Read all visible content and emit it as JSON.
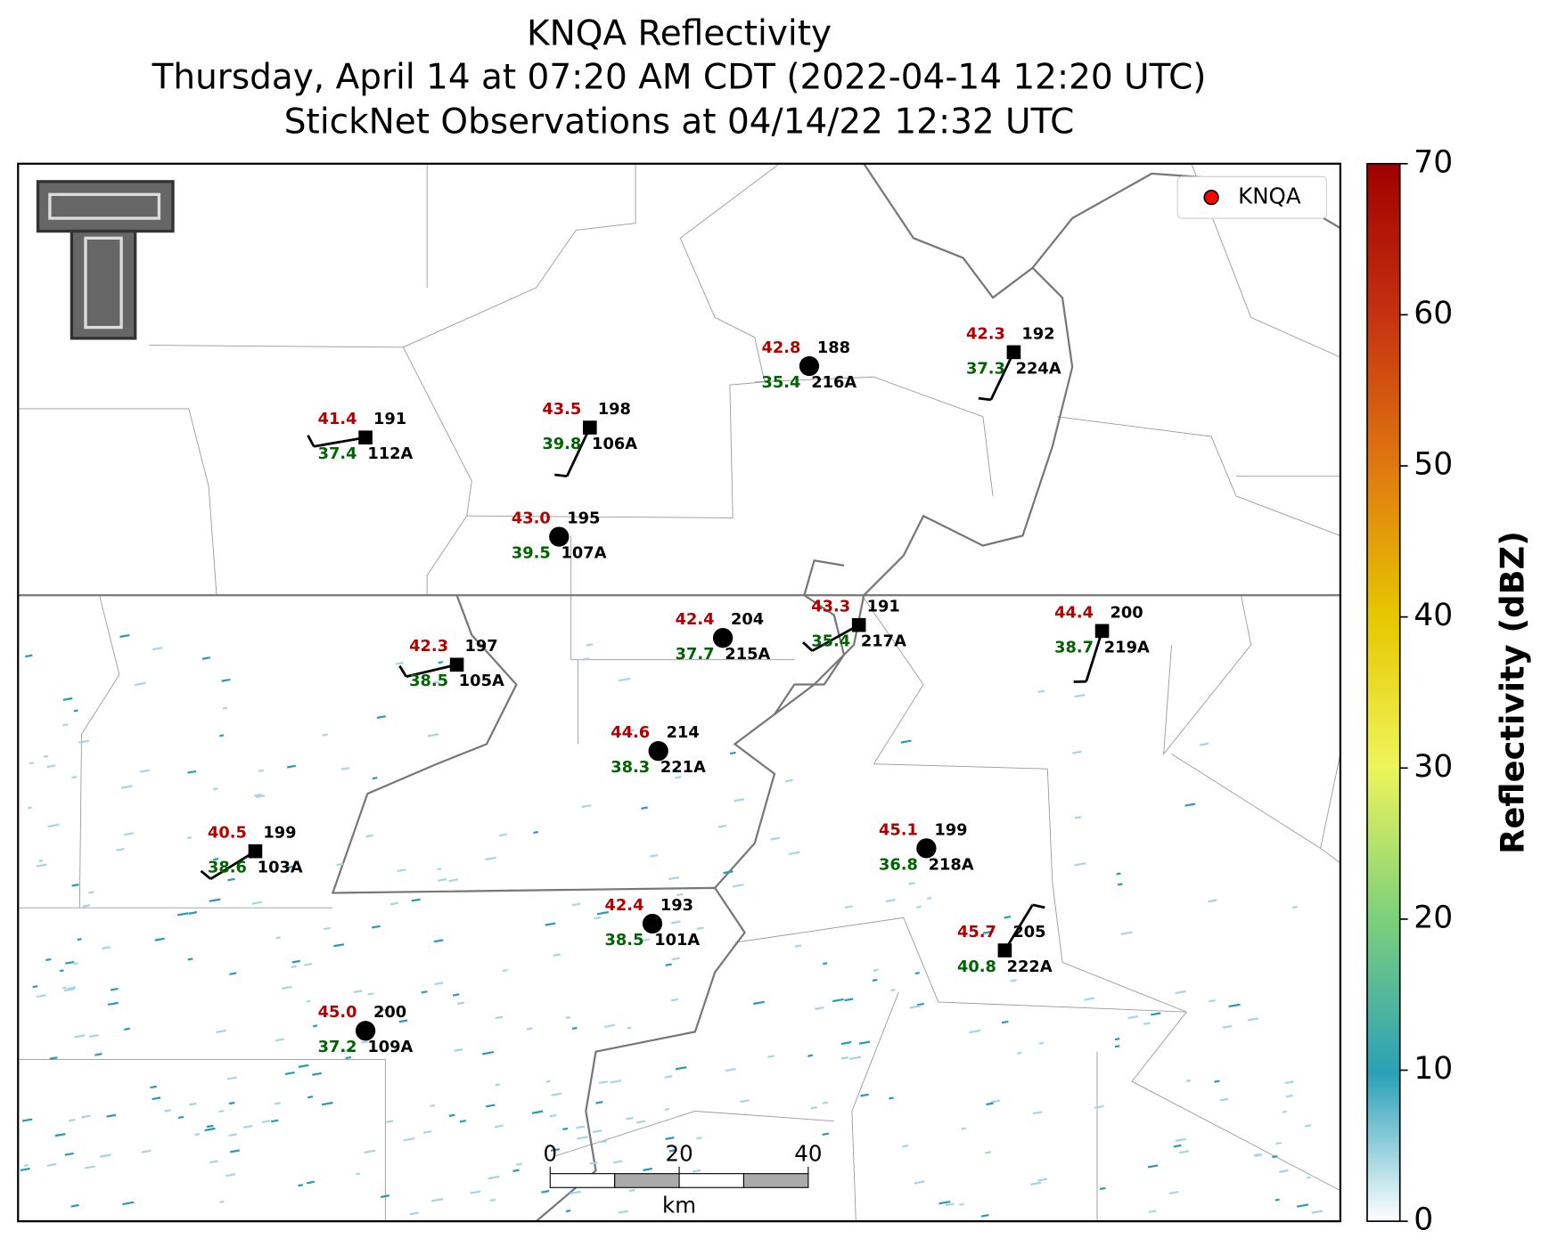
{
  "title": {
    "lines": [
      "KNQA Reflectivity",
      "Thursday, April 14 at 07:20 AM CDT (2022-04-14 12:20 UTC)",
      "StickNet Observations at 04/14/22 12:32 UTC"
    ]
  },
  "legend": {
    "label": "KNQA",
    "color": "#ff0000"
  },
  "colorbar": {
    "label": "Reflectivity (dBZ)",
    "lim": [
      0,
      70
    ],
    "ticks": [
      0,
      10,
      20,
      30,
      40,
      50,
      60,
      70
    ]
  },
  "scale_bar": {
    "ticks": [
      0,
      20,
      40
    ],
    "unit": "km"
  },
  "stations": [
    {
      "id": "112A",
      "temperature": "41.4",
      "dewpoint": "37.4",
      "value": "191"
    },
    {
      "id": "106A",
      "temperature": "43.5",
      "dewpoint": "39.8",
      "value": "198"
    },
    {
      "id": "107A",
      "temperature": "43.0",
      "dewpoint": "39.5",
      "value": "195"
    },
    {
      "id": "216A",
      "temperature": "42.8",
      "dewpoint": "35.4",
      "value": "188"
    },
    {
      "id": "224A",
      "temperature": "42.3",
      "dewpoint": "37.3",
      "value": "192"
    },
    {
      "id": "215A",
      "temperature": "42.4",
      "dewpoint": "37.7",
      "value": "204"
    },
    {
      "id": "217A",
      "temperature": "43.3",
      "dewpoint": "35.4",
      "value": "191"
    },
    {
      "id": "219A",
      "temperature": "44.4",
      "dewpoint": "38.7",
      "value": "200"
    },
    {
      "id": "105A",
      "temperature": "42.3",
      "dewpoint": "38.5",
      "value": "197"
    },
    {
      "id": "221A",
      "temperature": "44.6",
      "dewpoint": "38.3",
      "value": "214"
    },
    {
      "id": "103A",
      "temperature": "40.5",
      "dewpoint": "38.6",
      "value": "199"
    },
    {
      "id": "218A",
      "temperature": "45.1",
      "dewpoint": "36.8",
      "value": "199"
    },
    {
      "id": "101A",
      "temperature": "42.4",
      "dewpoint": "38.5",
      "value": "193"
    },
    {
      "id": "222A",
      "temperature": "45.7",
      "dewpoint": "40.8",
      "value": "205"
    },
    {
      "id": "109A",
      "temperature": "45.0",
      "dewpoint": "37.2",
      "value": "200"
    }
  ]
}
